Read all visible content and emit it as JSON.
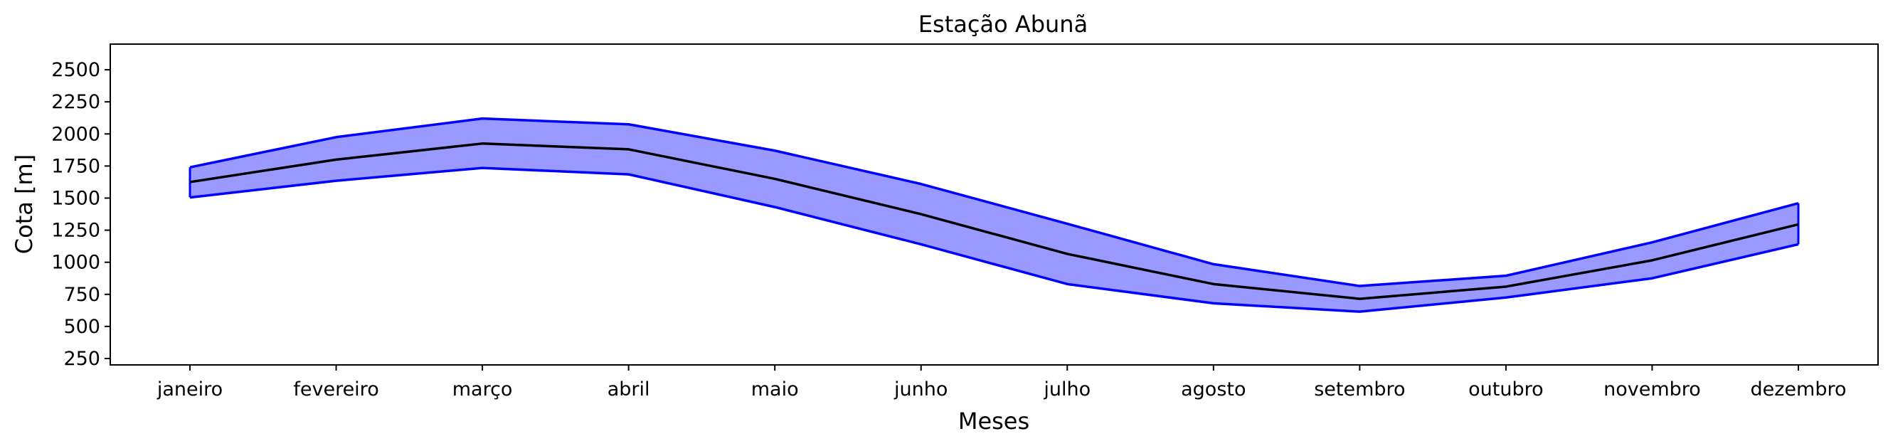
{
  "chart_data": {
    "type": "area",
    "title": "Estação Abunã",
    "xlabel": "Meses",
    "ylabel": "Cota [m]",
    "categories": [
      "janeiro",
      "fevereiro",
      "março",
      "abril",
      "maio",
      "junho",
      "julho",
      "agosto",
      "setembro",
      "outubro",
      "novembro",
      "dezembro"
    ],
    "ylim": [
      200,
      2700
    ],
    "yticks": [
      250,
      500,
      750,
      1000,
      1250,
      1500,
      1750,
      2000,
      2250,
      2500
    ],
    "grid": false,
    "series": [
      {
        "role": "upper",
        "values": [
          1740,
          1975,
          2120,
          2075,
          1870,
          1610,
          1300,
          985,
          815,
          895,
          1155,
          1460
        ]
      },
      {
        "role": "mean",
        "values": [
          1625,
          1800,
          1925,
          1880,
          1650,
          1375,
          1065,
          830,
          715,
          810,
          1015,
          1295
        ]
      },
      {
        "role": "lower",
        "values": [
          1505,
          1635,
          1735,
          1685,
          1430,
          1140,
          830,
          680,
          615,
          725,
          875,
          1140
        ]
      }
    ],
    "colors": {
      "band_fill": "#9999ff",
      "band_edge": "#0000ff",
      "mean_line": "#000000"
    }
  }
}
